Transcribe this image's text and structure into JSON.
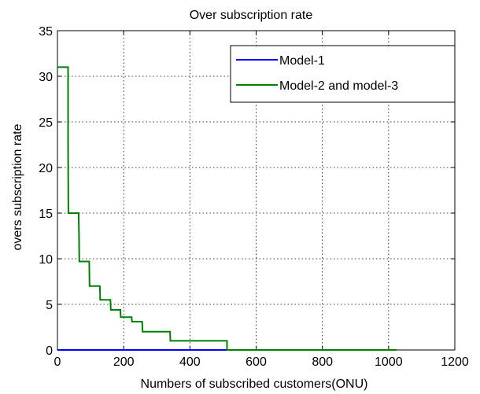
{
  "chart_data": {
    "type": "line",
    "title": "Over subscription rate",
    "xlabel": "Numbers of subscribed customers(ONU)",
    "ylabel": "overs subscription rate",
    "xlim": [
      0,
      1200
    ],
    "ylim": [
      0,
      35
    ],
    "xticks": [
      0,
      200,
      400,
      600,
      800,
      1000,
      1200
    ],
    "yticks": [
      0,
      5,
      10,
      15,
      20,
      25,
      30,
      35
    ],
    "grid": true,
    "legend_position": "top-right",
    "series": [
      {
        "name": "Model-1",
        "color": "#0000ff",
        "points": [
          [
            0,
            0
          ],
          [
            1024,
            0
          ]
        ]
      },
      {
        "name": "Model-2 and model-3",
        "color": "#008000",
        "points": [
          [
            0,
            31
          ],
          [
            32,
            31
          ],
          [
            32,
            23
          ],
          [
            33,
            15
          ],
          [
            64,
            15
          ],
          [
            65,
            12.5
          ],
          [
            66,
            9.7
          ],
          [
            96,
            9.7
          ],
          [
            97,
            7
          ],
          [
            128,
            7
          ],
          [
            129,
            5.5
          ],
          [
            160,
            5.5
          ],
          [
            161,
            4.4
          ],
          [
            190,
            4.4
          ],
          [
            191,
            3.6
          ],
          [
            224,
            3.6
          ],
          [
            225,
            3.1
          ],
          [
            256,
            3.1
          ],
          [
            257,
            2
          ],
          [
            340,
            2
          ],
          [
            341,
            1
          ],
          [
            512,
            1
          ],
          [
            512,
            0
          ],
          [
            1024,
            0
          ]
        ]
      }
    ]
  }
}
